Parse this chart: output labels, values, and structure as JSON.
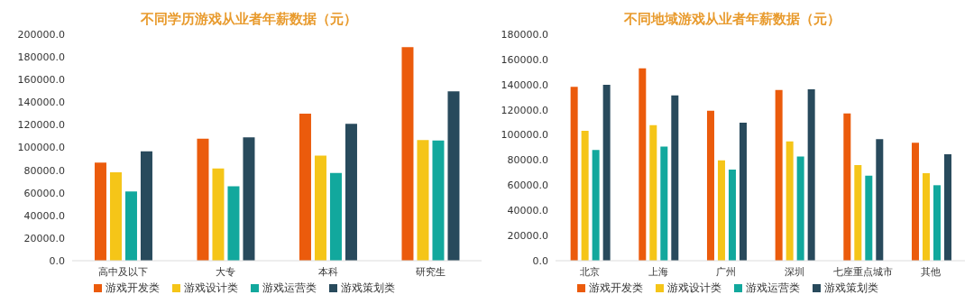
{
  "chart_data": [
    {
      "type": "bar",
      "title": "不同学历游戏从业者年薪数据（元）",
      "categories": [
        "高中及以下",
        "大专",
        "本科",
        "研究生"
      ],
      "series": [
        {
          "name": "游戏开发类",
          "color": "#eb5b0c",
          "values": [
            86700,
            107700,
            129900,
            188600
          ]
        },
        {
          "name": "游戏设计类",
          "color": "#f5c518",
          "values": [
            78100,
            81500,
            92900,
            106500
          ]
        },
        {
          "name": "游戏运营类",
          "color": "#12a89d",
          "values": [
            61100,
            65700,
            77500,
            106200
          ]
        },
        {
          "name": "游戏策划类",
          "color": "#284a5c",
          "values": [
            96600,
            109000,
            121000,
            149700
          ]
        }
      ],
      "ylim": [
        0,
        200000
      ],
      "yticks": [
        {
          "value": 0,
          "label": "0.0"
        },
        {
          "value": 20000,
          "label": "20000.0"
        },
        {
          "value": 40000,
          "label": "40000.0"
        },
        {
          "value": 60000,
          "label": "60000.0"
        },
        {
          "value": 80000,
          "label": "80000.0"
        },
        {
          "value": 100000,
          "label": "100000.0"
        },
        {
          "value": 120000,
          "label": "120000.0"
        },
        {
          "value": 140000,
          "label": "140000.0"
        },
        {
          "value": 160000,
          "label": "160000.0"
        },
        {
          "value": 180000,
          "label": "180000.0"
        },
        {
          "value": 200000,
          "label": "200000.0"
        }
      ],
      "grid": false,
      "legend": "bottom"
    },
    {
      "type": "bar",
      "title": "不同地域游戏从业者年薪数据（元）",
      "categories": [
        "北京",
        "上海",
        "广州",
        "深圳",
        "七座重点城市",
        "其他"
      ],
      "series": [
        {
          "name": "游戏开发类",
          "color": "#eb5b0c",
          "values": [
            138200,
            152900,
            119200,
            135800,
            117000,
            93700
          ]
        },
        {
          "name": "游戏设计类",
          "color": "#f5c518",
          "values": [
            103200,
            107800,
            79800,
            94800,
            76000,
            69500
          ]
        },
        {
          "name": "游戏运营类",
          "color": "#12a89d",
          "values": [
            88000,
            90700,
            72500,
            82800,
            67600,
            60000
          ]
        },
        {
          "name": "游戏策划类",
          "color": "#284a5c",
          "values": [
            139800,
            131400,
            109700,
            136300,
            96700,
            84700
          ]
        }
      ],
      "ylim": [
        0,
        180000
      ],
      "yticks": [
        {
          "value": 0,
          "label": "0.0"
        },
        {
          "value": 20000,
          "label": "20000.0"
        },
        {
          "value": 40000,
          "label": "40000.0"
        },
        {
          "value": 60000,
          "label": "60000.0"
        },
        {
          "value": 80000,
          "label": "80000.0"
        },
        {
          "value": 100000,
          "label": "100000.0"
        },
        {
          "value": 120000,
          "label": "120000.0"
        },
        {
          "value": 140000,
          "label": "140000.0"
        },
        {
          "value": 160000,
          "label": "160000.0"
        },
        {
          "value": 180000,
          "label": "180000.0"
        }
      ],
      "grid": false,
      "legend": "bottom"
    }
  ]
}
